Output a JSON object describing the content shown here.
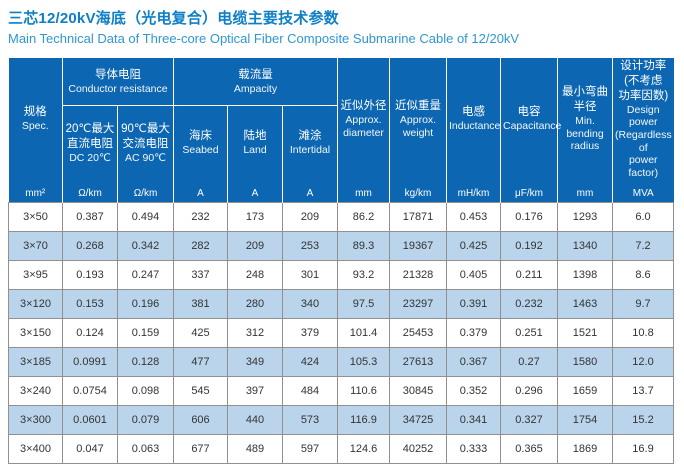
{
  "title": "三芯12/20kV海底（光电复合）电缆主要技术参数",
  "subtitle": "Main Technical Data of Three-core Optical Fiber Composite Submarine Cable of 12/20kV",
  "colors": {
    "title_color": "#0e7fc6",
    "subtitle_color": "#2f96d2",
    "header_bg": "#0d66b1",
    "header_text": "#ffffff",
    "row_alt_bg": "#bad5eb",
    "grid": "#909090",
    "text": "#333333"
  },
  "table": {
    "headers": {
      "spec": {
        "zh": "规格",
        "en": "Spec."
      },
      "conductor_resistance": {
        "zh": "导体电阻",
        "en": "Conductor resistance"
      },
      "ampacity": {
        "zh": "载流量",
        "en": "Ampacity"
      },
      "dc20": {
        "zh": "20℃最大\n直流电阻",
        "en": "DC 20℃"
      },
      "ac90": {
        "zh": "90℃最大\n交流电阻",
        "en": "AC 90℃"
      },
      "seabed": {
        "zh": "海床",
        "en": "Seabed"
      },
      "land": {
        "zh": "陆地",
        "en": "Land"
      },
      "intertidal": {
        "zh": "滩涂",
        "en": "Intertidal"
      },
      "diameter": {
        "zh": "近似外径",
        "en": "Approx.\ndiameter"
      },
      "weight": {
        "zh": "近似重量",
        "en": "Approx.\nweight"
      },
      "inductance": {
        "zh": "电感",
        "en": "Inductance"
      },
      "capacitance": {
        "zh": "电容",
        "en": "Capacitance"
      },
      "bending_radius": {
        "zh": "最小弯曲\n半径",
        "en": "Min.\nbending\nradius"
      },
      "design_power": {
        "zh": "设计功率\n(不考虑\n功率因数)",
        "en": "Design\npower\n(Regardless of\npower factor)"
      }
    },
    "units": [
      "mm²",
      "Ω/km",
      "Ω/km",
      "A",
      "A",
      "A",
      "mm",
      "kg/km",
      "mH/km",
      "μF/km",
      "mm",
      "MVA"
    ],
    "rows": [
      [
        "3×50",
        "0.387",
        "0.494",
        "232",
        "173",
        "209",
        "86.2",
        "17871",
        "0.453",
        "0.176",
        "1293",
        "6.0"
      ],
      [
        "3×70",
        "0.268",
        "0.342",
        "282",
        "209",
        "253",
        "89.3",
        "19367",
        "0.425",
        "0.192",
        "1340",
        "7.2"
      ],
      [
        "3×95",
        "0.193",
        "0.247",
        "337",
        "248",
        "301",
        "93.2",
        "21328",
        "0.405",
        "0.211",
        "1398",
        "8.6"
      ],
      [
        "3×120",
        "0.153",
        "0.196",
        "381",
        "280",
        "340",
        "97.5",
        "23297",
        "0.391",
        "0.232",
        "1463",
        "9.7"
      ],
      [
        "3×150",
        "0.124",
        "0.159",
        "425",
        "312",
        "379",
        "101.4",
        "25453",
        "0.379",
        "0.251",
        "1521",
        "10.8"
      ],
      [
        "3×185",
        "0.0991",
        "0.128",
        "477",
        "349",
        "424",
        "105.3",
        "27613",
        "0.367",
        "0.27",
        "1580",
        "12.0"
      ],
      [
        "3×240",
        "0.0754",
        "0.098",
        "545",
        "397",
        "484",
        "110.6",
        "30845",
        "0.352",
        "0.296",
        "1659",
        "13.7"
      ],
      [
        "3×300",
        "0.0601",
        "0.079",
        "606",
        "440",
        "573",
        "116.9",
        "34725",
        "0.341",
        "0.327",
        "1754",
        "15.2"
      ],
      [
        "3×400",
        "0.047",
        "0.063",
        "677",
        "489",
        "597",
        "124.6",
        "40252",
        "0.333",
        "0.365",
        "1869",
        "16.9"
      ]
    ]
  }
}
